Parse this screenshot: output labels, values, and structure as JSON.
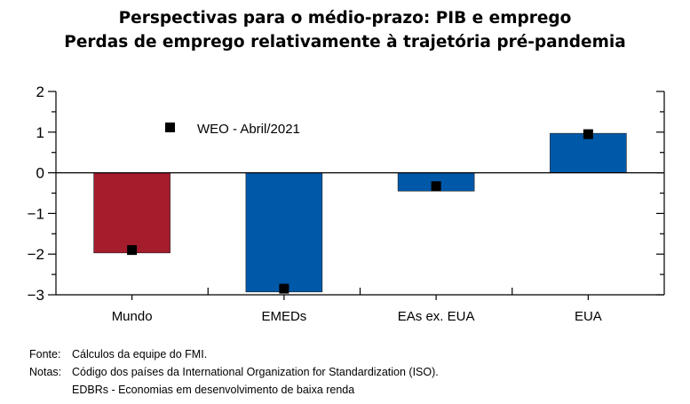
{
  "title": "Perspectivas para o médio-prazo: PIB e emprego",
  "subtitle": "Perdas de emprego relativamente à trajetória pré-pandemia",
  "chart_data": {
    "type": "bar",
    "categories": [
      "Mundo",
      "EMEDs",
      "EAs ex. EUA",
      "EUA"
    ],
    "series": [
      {
        "name": "",
        "values": [
          -1.97,
          -2.93,
          -0.45,
          0.97
        ],
        "colors": [
          "#a51d2d",
          "#0058a8",
          "#0058a8",
          "#0058a8"
        ]
      },
      {
        "name": "WEO - Abril/2021",
        "type": "scatter",
        "marker": "square",
        "values": [
          -1.9,
          -2.85,
          -0.33,
          0.95
        ],
        "color": "#000000"
      }
    ],
    "ylim": [
      -3,
      2
    ],
    "yticks": [
      2,
      1,
      0,
      -1,
      -2,
      -3
    ],
    "ytick_labels": [
      "2",
      "1",
      "0",
      "−1",
      "−2",
      "−3"
    ],
    "xlabel": "",
    "ylabel": "",
    "legend": "top-left",
    "grid": false
  },
  "notes": {
    "source_label": "Fonte:",
    "source_text": "Cálculos da equipe do FMI.",
    "notes_label": "Notas:",
    "notes_text": "Código dos países da International  Organization for Standardization (ISO).",
    "notes_text2": "EDBRs - Economias em desenvolvimento  de baixa renda"
  }
}
